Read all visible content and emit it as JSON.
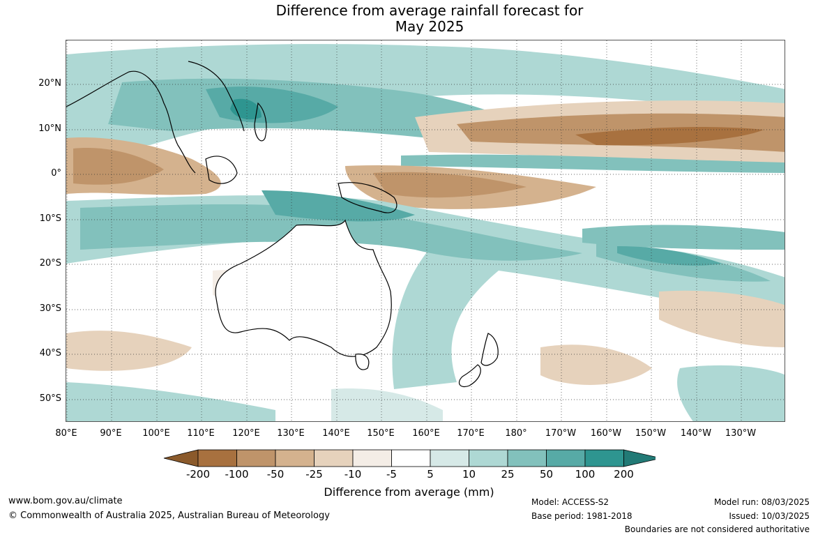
{
  "title_line1": "Difference from average rainfall forecast for",
  "title_line2": "May 2025",
  "lat_labels": [
    "20°N",
    "10°N",
    "0°",
    "10°S",
    "20°S",
    "30°S",
    "40°S",
    "50°S"
  ],
  "lon_labels": [
    "80°E",
    "90°E",
    "100°E",
    "110°E",
    "120°E",
    "130°E",
    "140°E",
    "150°E",
    "160°E",
    "170°E",
    "180°",
    "170°W",
    "160°W",
    "150°W",
    "140°W",
    "130°W"
  ],
  "legend": {
    "ticks": [
      "-200",
      "-100",
      "-50",
      "-25",
      "-10",
      "-5",
      "5",
      "10",
      "25",
      "50",
      "100",
      "200"
    ],
    "colors": [
      "#8b5a2b",
      "#a8713f",
      "#bf946a",
      "#d4b28e",
      "#e6d2bc",
      "#f4ede6",
      "#ffffff",
      "#d6e9e7",
      "#aed8d4",
      "#82c1bc",
      "#57aaa6",
      "#2e9590",
      "#227a76"
    ],
    "title": "Difference from average (mm)"
  },
  "footer": {
    "website": "www.bom.gov.au/climate",
    "copyright": "© Commonwealth of Australia 2025, Australian Bureau of Meteorology",
    "model": "Model: ACCESS-S2",
    "base_period": "Base period: 1981-2018",
    "model_run": "Model run: 08/03/2025",
    "issued": "Issued: 10/03/2025",
    "disclaimer": "Boundaries are not considered authoritative"
  }
}
